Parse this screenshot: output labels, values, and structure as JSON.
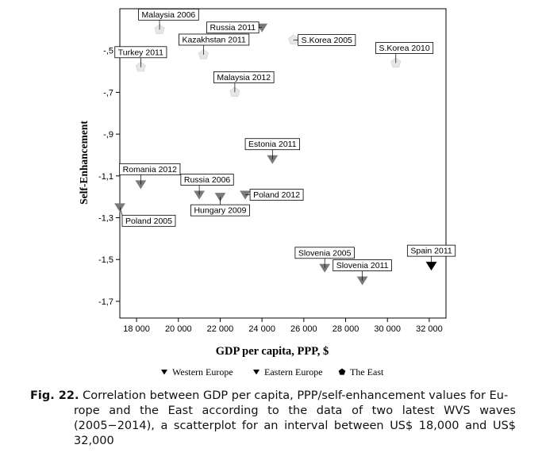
{
  "chart_data": {
    "type": "scatter",
    "xlabel": "GDP per capita, PPP, $",
    "ylabel": "Self-Enhancement",
    "xlim": [
      17200,
      32800
    ],
    "ylim": [
      -1.78,
      -0.3
    ],
    "xticks": [
      {
        "v": 18000,
        "label": "18 000"
      },
      {
        "v": 20000,
        "label": "20 000"
      },
      {
        "v": 22000,
        "label": "22 000"
      },
      {
        "v": 24000,
        "label": "24 000"
      },
      {
        "v": 26000,
        "label": "26 000"
      },
      {
        "v": 28000,
        "label": "28 000"
      },
      {
        "v": 30000,
        "label": "30 000"
      },
      {
        "v": 32000,
        "label": "32 000"
      }
    ],
    "yticks": [
      {
        "v": -0.5,
        "label": "-,5"
      },
      {
        "v": -0.7,
        "label": "-,7"
      },
      {
        "v": -0.9,
        "label": "-,9"
      },
      {
        "v": -1.1,
        "label": "-1,1"
      },
      {
        "v": -1.3,
        "label": "-1,3"
      },
      {
        "v": -1.5,
        "label": "-1,5"
      },
      {
        "v": -1.7,
        "label": "-1,7"
      }
    ],
    "grid": false,
    "legend_position": "bottom",
    "series": [
      {
        "name": "Western Europe",
        "marker": "triangle-down",
        "color": "#000000",
        "points": [
          {
            "label": "Spain 2011",
            "x": 32100,
            "y": -1.53,
            "label_side": "above"
          }
        ]
      },
      {
        "name": "Eastern Europe",
        "marker": "triangle-down",
        "color": "#7a7a7a",
        "points": [
          {
            "label": "Russia 2011",
            "x": 24000,
            "y": -0.39,
            "label_side": "left"
          },
          {
            "label": "Estonia 2011",
            "x": 24500,
            "y": -1.02,
            "label_side": "above"
          },
          {
            "label": "Romania 2012",
            "x": 18200,
            "y": -1.14,
            "label_side": "above-right"
          },
          {
            "label": "Russia 2006",
            "x": 21000,
            "y": -1.19,
            "label_side": "above-right"
          },
          {
            "label": "Hungary 2009",
            "x": 22000,
            "y": -1.2,
            "label_side": "below"
          },
          {
            "label": "Poland 2012",
            "x": 23200,
            "y": -1.19,
            "label_side": "right"
          },
          {
            "label": "Poland 2005",
            "x": 17200,
            "y": -1.25,
            "label_side": "below-right"
          },
          {
            "label": "Slovenia 2005",
            "x": 27000,
            "y": -1.54,
            "label_side": "above"
          },
          {
            "label": "Slovenia 2011",
            "x": 28800,
            "y": -1.6,
            "label_side": "above"
          }
        ]
      },
      {
        "name": "The East",
        "marker": "pentagon",
        "color": "#e6e6e6",
        "points": [
          {
            "label": "Malaysia 2006",
            "x": 19100,
            "y": -0.4,
            "label_side": "above-right"
          },
          {
            "label": "S.Korea 2005",
            "x": 25500,
            "y": -0.45,
            "label_side": "right"
          },
          {
            "label": "Kazakhstan 2011",
            "x": 21200,
            "y": -0.52,
            "label_side": "above-right"
          },
          {
            "label": "Turkey 2011",
            "x": 18200,
            "y": -0.58,
            "label_side": "above"
          },
          {
            "label": "S.Korea 2010",
            "x": 30400,
            "y": -0.56,
            "label_side": "above-right"
          },
          {
            "label": "Malaysia 2012",
            "x": 22700,
            "y": -0.7,
            "label_side": "above-right"
          }
        ]
      }
    ]
  },
  "caption": {
    "label": "Fig. 22.",
    "text_first": "Correlation between GDP per capita, PPP/self-enhancement values for Eu-",
    "text_rest": "rope and the East according to the data of two latest WVS waves (2005−2014), a scatterplot for an interval between US$ 18,000 and US$ 32,000"
  }
}
